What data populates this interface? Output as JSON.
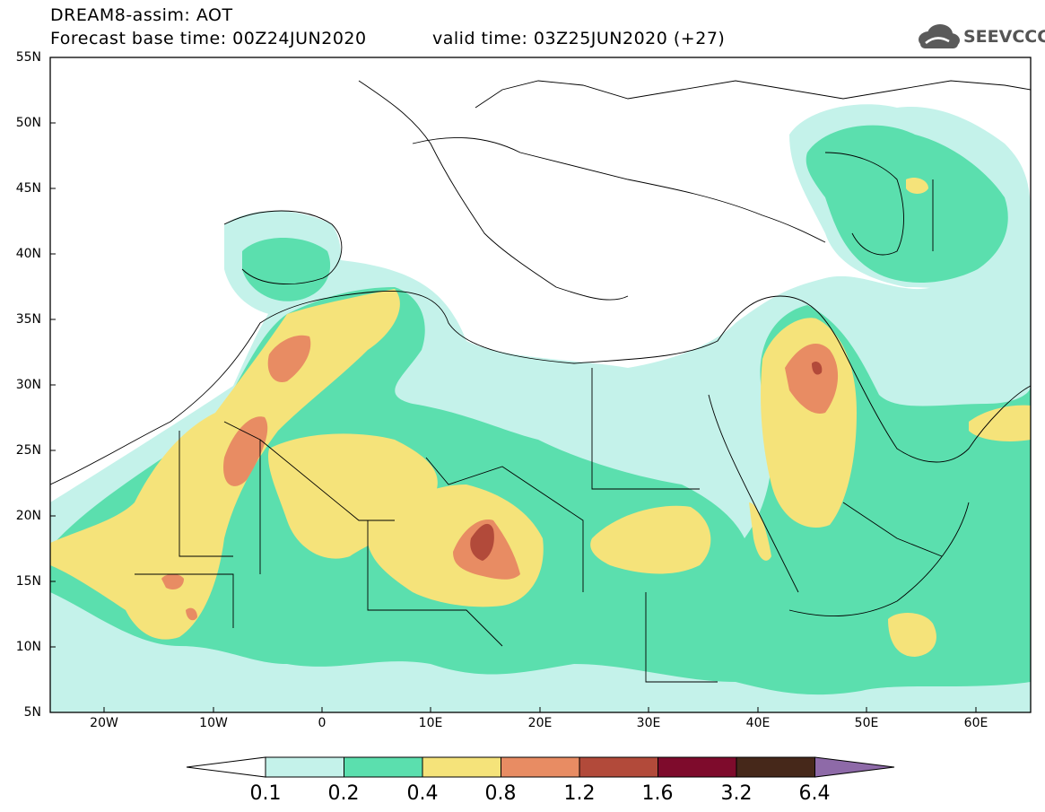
{
  "header": {
    "title": "DREAM8-assim: AOT",
    "base_time": "Forecast base time: 00Z24JUN2020",
    "valid_time": "valid time: 03Z25JUN2020 (+27)"
  },
  "logo": {
    "text": "SEEVCCC",
    "icon": "cloud-icon",
    "color": "#5a5a5a"
  },
  "map": {
    "lat_labels": [
      "55N",
      "50N",
      "45N",
      "40N",
      "35N",
      "30N",
      "25N",
      "20N",
      "15N",
      "10N",
      "5N"
    ],
    "lon_labels": [
      "20W",
      "10W",
      "0",
      "10E",
      "20E",
      "30E",
      "40E",
      "50E",
      "60E"
    ],
    "lat_range": [
      5,
      55
    ],
    "lon_range": [
      -25,
      65
    ]
  },
  "colorbar": {
    "labels": [
      "0.1",
      "0.2",
      "0.4",
      "0.8",
      "1.2",
      "1.6",
      "3.2",
      "6.4"
    ],
    "colors": [
      "#ffffff",
      "#c4f2ea",
      "#5bdfae",
      "#f5e37a",
      "#e88c63",
      "#b24a3a",
      "#7e0b2c",
      "#46281a",
      "#8e6aa8"
    ]
  }
}
